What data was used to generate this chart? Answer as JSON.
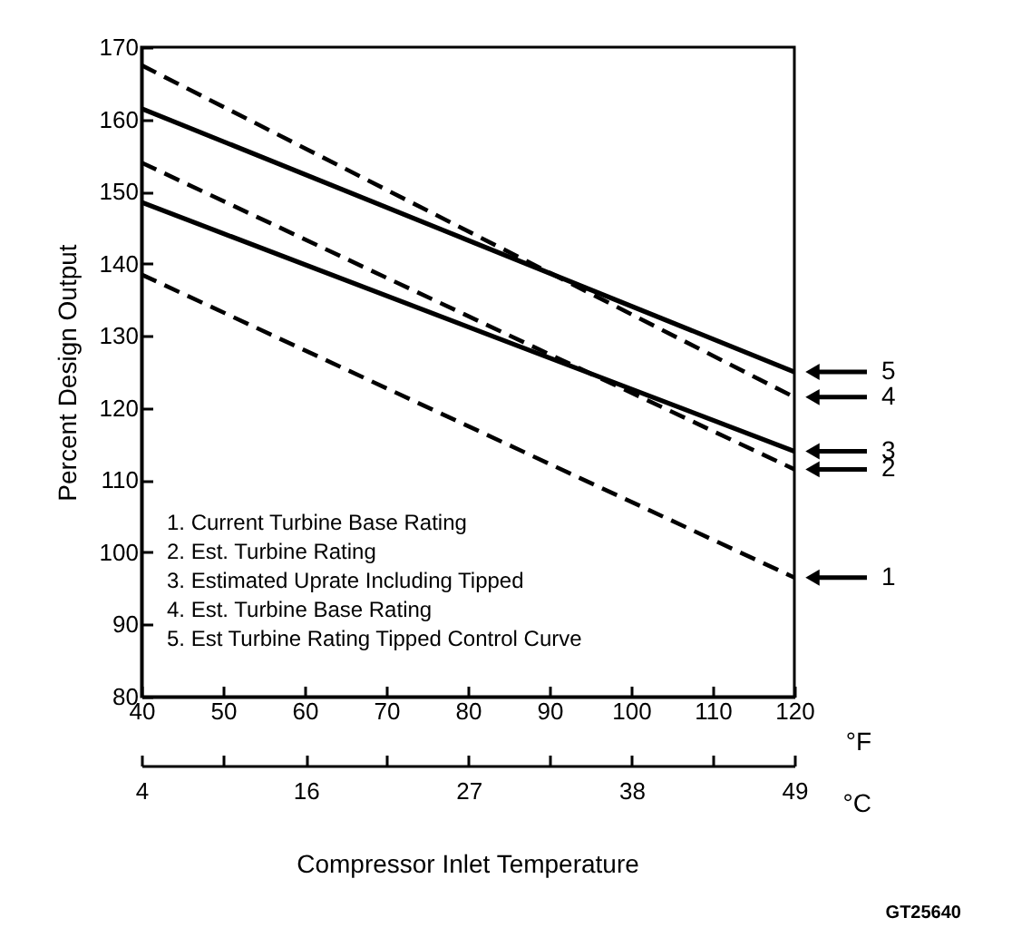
{
  "chart_data": {
    "type": "line",
    "xlabel": "°F",
    "ylabel": "Percent Design Output",
    "x2label": "°C",
    "x": [
      40,
      120
    ],
    "series": [
      {
        "color": "#000000",
        "line_style": "dashed",
        "values": [
          138.5,
          96.5
        ]
      },
      {
        "color": "#000000",
        "line_style": "dashed",
        "values": [
          154,
          111.5
        ]
      },
      {
        "color": "#000000",
        "line_style": "solid",
        "values": [
          148.5,
          114
        ]
      },
      {
        "color": "#000000",
        "line_style": "dashed",
        "values": [
          167.5,
          121.5
        ]
      },
      {
        "color": "#000000",
        "line_style": "solid",
        "values": [
          161.5,
          125
        ]
      }
    ],
    "xlim": [
      40,
      120
    ],
    "xticks": [
      40,
      50,
      60,
      70,
      80,
      90,
      100,
      110,
      120
    ],
    "ylim": [
      80,
      170
    ],
    "yticks": [
      80,
      90,
      100,
      110,
      120,
      130,
      140,
      150,
      160,
      170
    ],
    "x2lim": [
      4.4,
      48.9
    ],
    "x2ticks": [
      {
        "value": 4.4,
        "label": "4"
      },
      {
        "value": 10,
        "label": null
      },
      {
        "value": 15.6,
        "label": "16"
      },
      {
        "value": 21.1,
        "label": null
      },
      {
        "value": 26.7,
        "label": "27"
      },
      {
        "value": 32.2,
        "label": null
      },
      {
        "value": 37.8,
        "label": "38"
      },
      {
        "value": 43.3,
        "label": null
      },
      {
        "value": 48.9,
        "label": "49"
      }
    ],
    "grid": false,
    "marker": "none",
    "annotations": [
      "1",
      "2",
      "3",
      "4",
      "5",
      "1. Current Turbine Base Rating",
      "2. Est. Turbine Rating",
      "3. Estimated Uprate Including Tipped",
      "4. Est. Turbine Base Rating",
      "5. Est Turbine Rating Tipped Control Curve",
      "Compressor Inlet Temperature",
      "GT25640"
    ]
  }
}
